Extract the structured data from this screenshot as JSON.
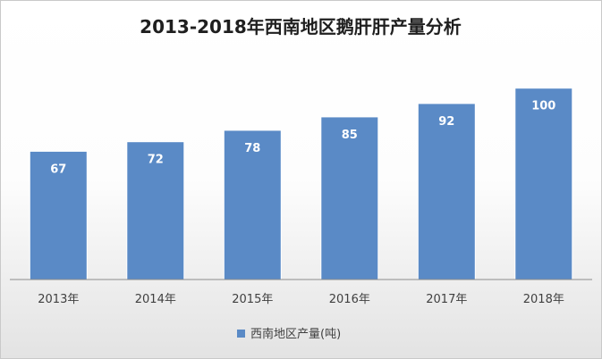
{
  "chart_data": {
    "type": "bar",
    "title": "2013-2018年西南地区鹅肝肝产量分析",
    "categories": [
      "2013年",
      "2014年",
      "2015年",
      "2016年",
      "2017年",
      "2018年"
    ],
    "series": [
      {
        "name": "西南地区产量(吨)",
        "values": [
          67,
          72,
          78,
          85,
          92,
          100
        ],
        "color": "#5a8ac6"
      }
    ],
    "data_labels": [
      "67",
      "72",
      "78",
      "85",
      "92",
      "100"
    ],
    "ylim": [
      0,
      112
    ],
    "show_y_axis": false,
    "grid": false,
    "legend_position": "bottom"
  }
}
